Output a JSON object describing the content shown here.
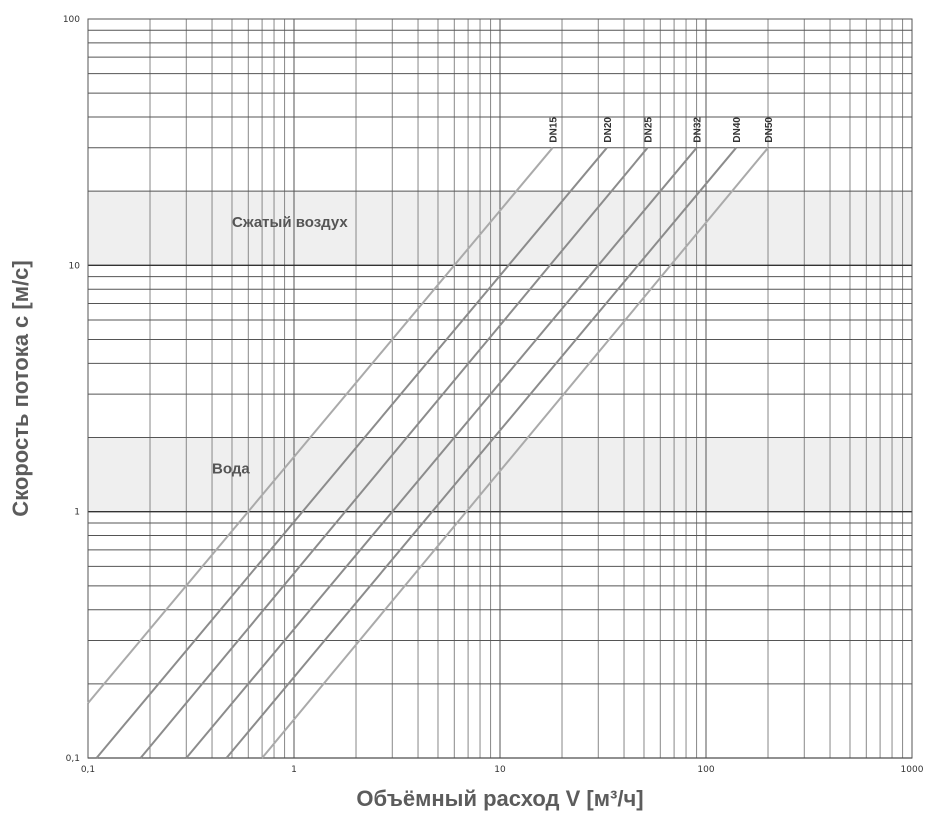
{
  "chart_data": {
    "type": "line",
    "xlabel": "Объёмный расход V [м³/ч]",
    "ylabel": "Скорость потока c [м/с]",
    "x_scale": "log",
    "y_scale": "log",
    "xlim": [
      0.1,
      1000
    ],
    "ylim": [
      0.1,
      100
    ],
    "x_ticks": [
      "0,1",
      "1",
      "10",
      "100",
      "1000"
    ],
    "y_ticks": [
      "0,1",
      "1",
      "10",
      "100"
    ],
    "grid": true,
    "bands": [
      {
        "label": "Сжатый воздух",
        "y_range": [
          10,
          20
        ],
        "color": "#efefef"
      },
      {
        "label": "Вода",
        "y_range": [
          1,
          2
        ],
        "color": "#efefef"
      }
    ],
    "series": [
      {
        "name": "DN15",
        "x": [
          0.1,
          18
        ],
        "y": [
          0.167,
          30
        ],
        "color": "#aaaaaa"
      },
      {
        "name": "DN20",
        "x": [
          0.11,
          33
        ],
        "y": [
          0.1,
          30
        ],
        "color": "#8c8c8c"
      },
      {
        "name": "DN25",
        "x": [
          0.18,
          52
        ],
        "y": [
          0.1,
          30
        ],
        "color": "#8c8c8c"
      },
      {
        "name": "DN32",
        "x": [
          0.3,
          90
        ],
        "y": [
          0.1,
          30
        ],
        "color": "#8c8c8c"
      },
      {
        "name": "DN40",
        "x": [
          0.47,
          140
        ],
        "y": [
          0.1,
          30
        ],
        "color": "#8c8c8c"
      },
      {
        "name": "DN50",
        "x": [
          0.7,
          200
        ],
        "y": [
          0.1,
          30
        ],
        "color": "#aaaaaa"
      }
    ]
  }
}
